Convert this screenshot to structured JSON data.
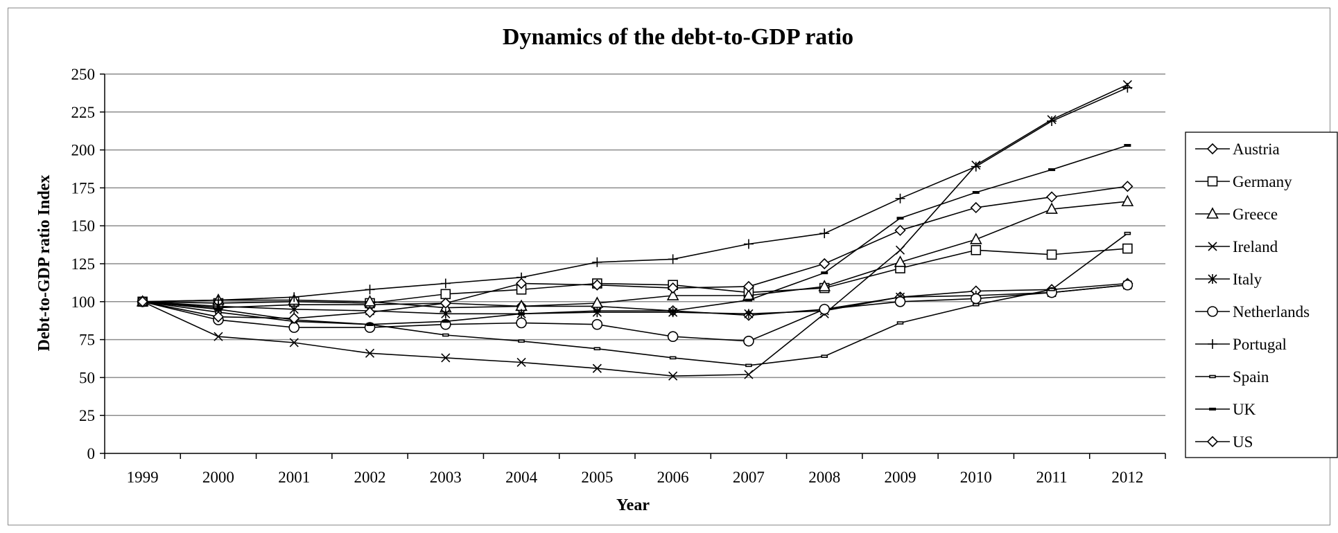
{
  "chart_data": {
    "type": "line",
    "title": "Dynamics of the debt-to-GDP ratio",
    "xlabel": "Year",
    "ylabel": "Debt-to-GDP ratio Index",
    "x": [
      "1999",
      "2000",
      "2001",
      "2002",
      "2003",
      "2004",
      "2005",
      "2006",
      "2007",
      "2008",
      "2009",
      "2010",
      "2011",
      "2012"
    ],
    "ylim": [
      0,
      250
    ],
    "yticks": [
      0,
      25,
      50,
      75,
      100,
      125,
      150,
      175,
      200,
      225,
      250
    ],
    "grid": true,
    "legend_position": "right",
    "series": [
      {
        "name": "Austria",
        "marker": "diamond",
        "values": [
          100,
          96,
          98,
          98,
          99,
          97,
          97,
          94,
          91,
          95,
          103,
          107,
          108,
          112
        ]
      },
      {
        "name": "Germany",
        "marker": "square",
        "values": [
          100,
          99,
          100,
          99,
          105,
          108,
          112,
          111,
          106,
          109,
          122,
          134,
          131,
          135
        ]
      },
      {
        "name": "Greece",
        "marker": "triangle",
        "values": [
          100,
          101,
          101,
          100,
          96,
          97,
          99,
          104,
          104,
          110,
          126,
          141,
          161,
          166
        ]
      },
      {
        "name": "Ireland",
        "marker": "x",
        "values": [
          100,
          77,
          73,
          66,
          63,
          60,
          56,
          51,
          52,
          92,
          134,
          190,
          220,
          243
        ]
      },
      {
        "name": "Italy",
        "marker": "star",
        "values": [
          100,
          97,
          95,
          94,
          92,
          92,
          93,
          93,
          92,
          94,
          103,
          104,
          106,
          111
        ]
      },
      {
        "name": "Netherlands",
        "marker": "circle",
        "values": [
          100,
          88,
          83,
          83,
          85,
          86,
          85,
          77,
          74,
          95,
          100,
          102,
          106,
          111
        ]
      },
      {
        "name": "Portugal",
        "marker": "plus",
        "values": [
          100,
          101,
          103,
          108,
          112,
          116,
          126,
          128,
          138,
          145,
          168,
          189,
          219,
          241
        ]
      },
      {
        "name": "Spain",
        "marker": "dash",
        "values": [
          100,
          93,
          87,
          85,
          78,
          74,
          69,
          63,
          58,
          64,
          86,
          98,
          108,
          145
        ]
      },
      {
        "name": "UK",
        "marker": "bar",
        "values": [
          100,
          95,
          88,
          85,
          87,
          92,
          94,
          94,
          101,
          119,
          155,
          172,
          187,
          203
        ]
      },
      {
        "name": "US",
        "marker": "diamond",
        "values": [
          100,
          90,
          89,
          93,
          99,
          112,
          111,
          109,
          110,
          125,
          147,
          162,
          169,
          176
        ]
      }
    ]
  }
}
